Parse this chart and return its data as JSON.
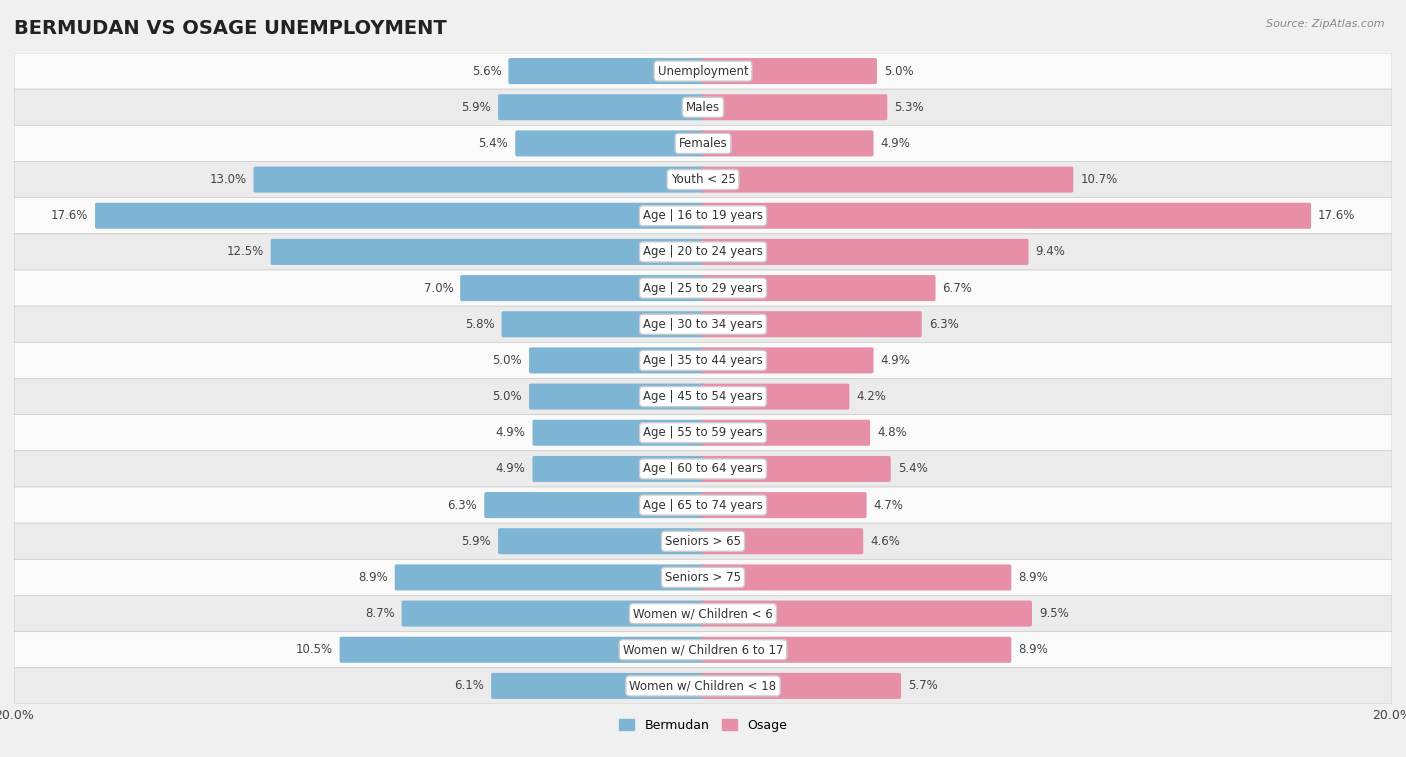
{
  "title": "BERMUDAN VS OSAGE UNEMPLOYMENT",
  "source": "Source: ZipAtlas.com",
  "categories": [
    "Unemployment",
    "Males",
    "Females",
    "Youth < 25",
    "Age | 16 to 19 years",
    "Age | 20 to 24 years",
    "Age | 25 to 29 years",
    "Age | 30 to 34 years",
    "Age | 35 to 44 years",
    "Age | 45 to 54 years",
    "Age | 55 to 59 years",
    "Age | 60 to 64 years",
    "Age | 65 to 74 years",
    "Seniors > 65",
    "Seniors > 75",
    "Women w/ Children < 6",
    "Women w/ Children 6 to 17",
    "Women w/ Children < 18"
  ],
  "bermudan": [
    5.6,
    5.9,
    5.4,
    13.0,
    17.6,
    12.5,
    7.0,
    5.8,
    5.0,
    5.0,
    4.9,
    4.9,
    6.3,
    5.9,
    8.9,
    8.7,
    10.5,
    6.1
  ],
  "osage": [
    5.0,
    5.3,
    4.9,
    10.7,
    17.6,
    9.4,
    6.7,
    6.3,
    4.9,
    4.2,
    4.8,
    5.4,
    4.7,
    4.6,
    8.9,
    9.5,
    8.9,
    5.7
  ],
  "bermudan_color": "#7eb5d5",
  "osage_color": "#e88fa8",
  "xlim": 20.0,
  "background_color": "#f0f0f0",
  "row_color_light": "#fafafa",
  "row_color_dark": "#ebebeb",
  "legend_bermudan": "Bermudan",
  "legend_osage": "Osage",
  "title_fontsize": 14,
  "label_fontsize": 8.5,
  "tick_fontsize": 9,
  "value_fontsize": 8.5
}
